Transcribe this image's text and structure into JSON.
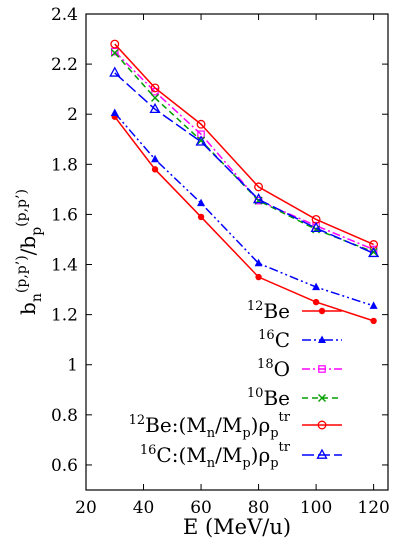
{
  "chart_data": {
    "type": "line",
    "title": "",
    "xlabel": "E (MeV/u)",
    "ylabel_parts": {
      "b1": "b",
      "sub1": "n",
      "sup1": "(p,p’)",
      "slash": "/",
      "b2": "b",
      "sub2": "p",
      "sup2": "(p,p’)"
    },
    "xlim": [
      20,
      125
    ],
    "ylim": [
      0.5,
      2.4
    ],
    "xticks": [
      20,
      40,
      60,
      80,
      100,
      120
    ],
    "yticks": [
      0.6,
      0.8,
      1,
      1.2,
      1.4,
      1.6,
      1.8,
      2,
      2.2,
      2.4
    ],
    "grid": false,
    "legend_position": "bottom-right",
    "series": [
      {
        "legend_parts": {
          "sup": "12",
          "main": "Be"
        },
        "color": "#ff0000",
        "marker": "filled-circle",
        "dash": "solid",
        "x": [
          30,
          44,
          60,
          80,
          100,
          120
        ],
        "y": [
          1.99,
          1.78,
          1.59,
          1.35,
          1.25,
          1.175
        ]
      },
      {
        "legend_parts": {
          "sup": "16",
          "main": "C"
        },
        "color": "#0000ff",
        "marker": "filled-triangle",
        "dash": "dashdotdot",
        "x": [
          30,
          44,
          60,
          80,
          100,
          120
        ],
        "y": [
          2.005,
          1.82,
          1.645,
          1.405,
          1.31,
          1.235
        ]
      },
      {
        "legend_parts": {
          "sup": "18",
          "main": "O"
        },
        "color": "#ff00ff",
        "marker": "open-square",
        "dash": "dashdot",
        "x": [
          30,
          44,
          60,
          80,
          100,
          120
        ],
        "y": [
          2.25,
          2.09,
          1.92,
          1.655,
          1.555,
          1.46
        ]
      },
      {
        "legend_parts": {
          "sup": "10",
          "main": "Be"
        },
        "color": "#00a000",
        "marker": "cross",
        "dash": "dashed",
        "x": [
          30,
          44,
          60,
          80,
          100,
          120
        ],
        "y": [
          2.245,
          2.065,
          1.895,
          1.655,
          1.54,
          1.45
        ]
      },
      {
        "legend_parts": {
          "sup": "12",
          "main": "Be:(M",
          "s1": "n",
          "m2": "/M",
          "s2": "p",
          "m3": ")ρ",
          "s3": "p",
          "sup3": "tr"
        },
        "color": "#ff0000",
        "marker": "open-circle",
        "dash": "solid",
        "x": [
          30,
          44,
          60,
          80,
          100,
          120
        ],
        "y": [
          2.28,
          2.105,
          1.96,
          1.71,
          1.58,
          1.48
        ]
      },
      {
        "legend_parts": {
          "sup": "16",
          "main": "C:(M",
          "s1": "n",
          "m2": "/M",
          "s2": "p",
          "m3": ")ρ",
          "s3": "p",
          "sup3": "tr"
        },
        "color": "#0000ff",
        "marker": "open-triangle",
        "dash": "longdash",
        "x": [
          30,
          44,
          60,
          80,
          100,
          120
        ],
        "y": [
          2.165,
          2.02,
          1.89,
          1.66,
          1.545,
          1.445
        ]
      }
    ]
  }
}
